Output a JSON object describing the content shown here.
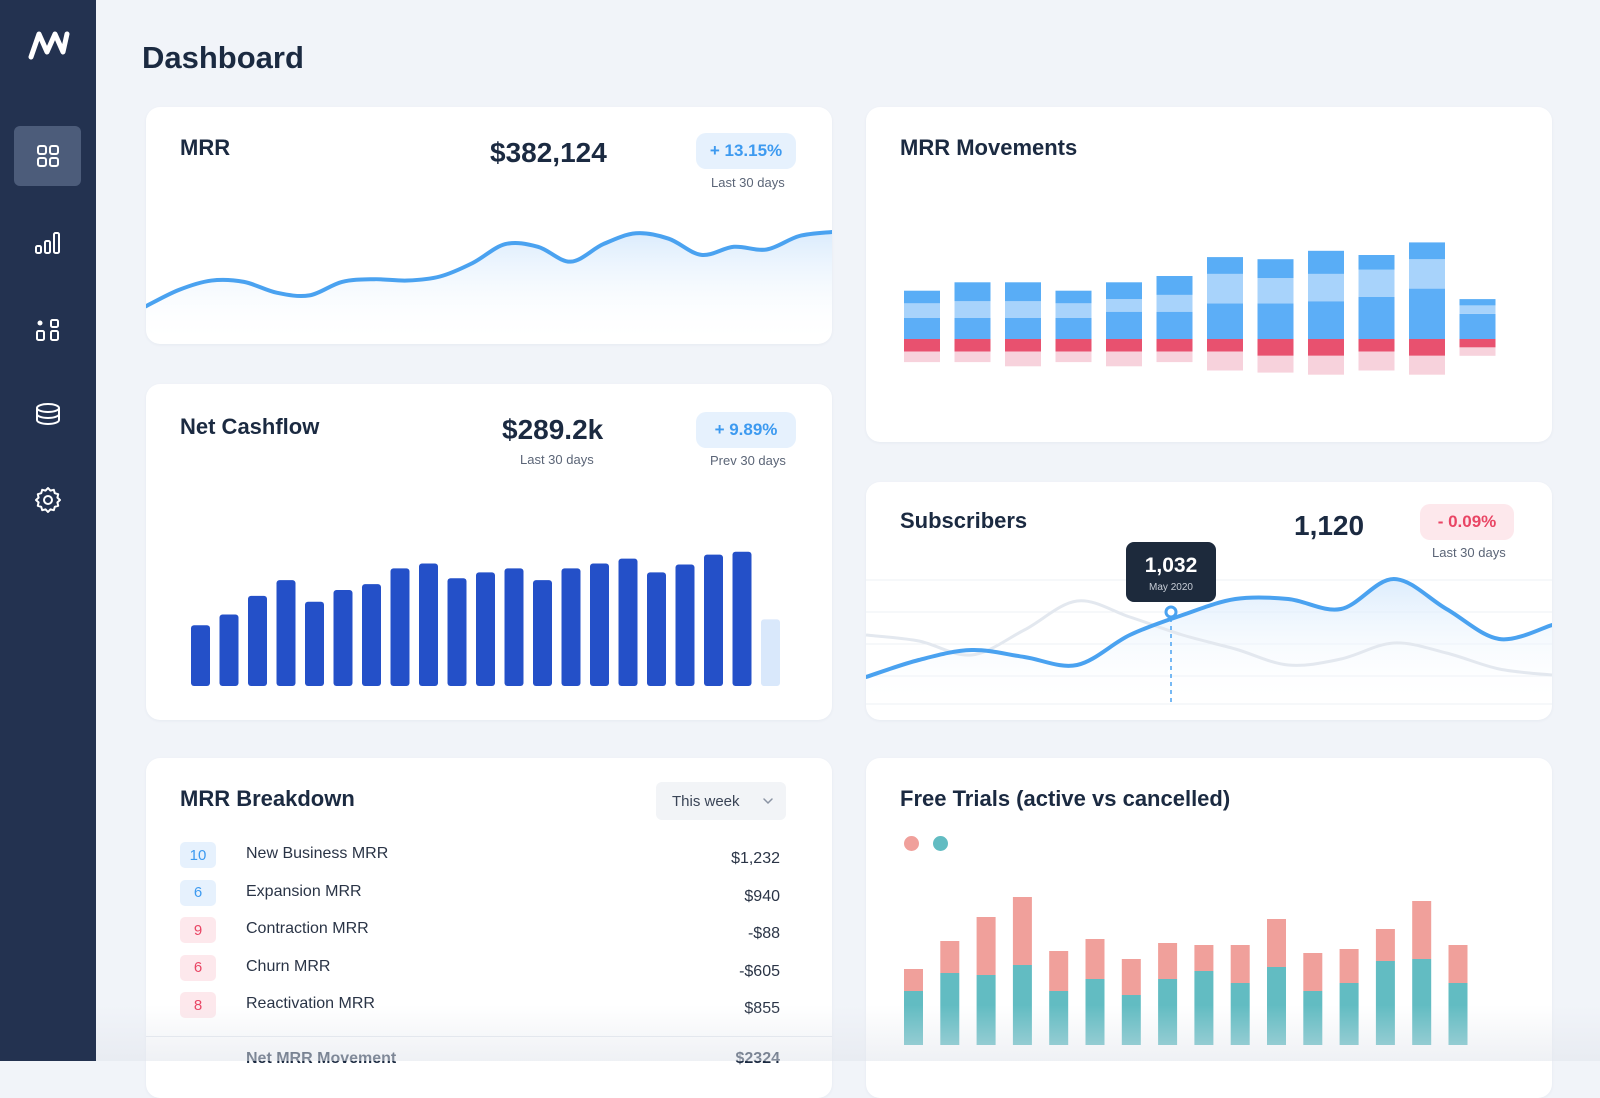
{
  "page": {
    "title": "Dashboard"
  },
  "sidebar": {
    "logo": "brand-logo",
    "items": [
      {
        "icon": "grid-icon",
        "active": true
      },
      {
        "icon": "bar-chart-icon",
        "active": false
      },
      {
        "icon": "shapes-icon",
        "active": false
      },
      {
        "icon": "database-icon",
        "active": false
      },
      {
        "icon": "gear-icon",
        "active": false
      }
    ]
  },
  "mrr": {
    "title": "MRR",
    "value": "$382,124",
    "badge": "+ 13.15%",
    "caption": "Last 30 days",
    "series": [
      28,
      40,
      47,
      46,
      38,
      36,
      46,
      48,
      47,
      50,
      60,
      74,
      72,
      61,
      74,
      82,
      78,
      66,
      72,
      70,
      80,
      83
    ]
  },
  "movements": {
    "title": "MRR Movements",
    "bars": [
      {
        "s1": 12,
        "s2": 14,
        "s3": 20,
        "r1": 12,
        "r2": 10
      },
      {
        "s1": 18,
        "s2": 16,
        "s3": 20,
        "r1": 12,
        "r2": 10
      },
      {
        "s1": 18,
        "s2": 16,
        "s3": 20,
        "r1": 12,
        "r2": 14
      },
      {
        "s1": 12,
        "s2": 14,
        "s3": 20,
        "r1": 12,
        "r2": 10
      },
      {
        "s1": 16,
        "s2": 12,
        "s3": 26,
        "r1": 12,
        "r2": 14
      },
      {
        "s1": 18,
        "s2": 16,
        "s3": 26,
        "r1": 12,
        "r2": 10
      },
      {
        "s1": 16,
        "s2": 28,
        "s3": 34,
        "r1": 12,
        "r2": 18
      },
      {
        "s1": 18,
        "s2": 24,
        "s3": 34,
        "r1": 16,
        "r2": 16
      },
      {
        "s1": 22,
        "s2": 26,
        "s3": 36,
        "r1": 16,
        "r2": 18
      },
      {
        "s1": 14,
        "s2": 26,
        "s3": 40,
        "r1": 12,
        "r2": 18
      },
      {
        "s1": 16,
        "s2": 28,
        "s3": 48,
        "r1": 16,
        "r2": 18
      },
      {
        "s1": 6,
        "s2": 8,
        "s3": 24,
        "r1": 8,
        "r2": 8
      }
    ],
    "colors": {
      "s1": "#59adf6",
      "s2": "#a8d3fb",
      "s3": "#5caef7",
      "r1": "#e8516f",
      "r2": "#f7d2dc"
    }
  },
  "cashflow": {
    "title": "Net Cashflow",
    "value": "$289.2k",
    "value_caption": "Last 30 days",
    "badge": "+ 9.89%",
    "badge_caption": "Prev 30 days",
    "values": [
      62,
      73,
      92,
      108,
      86,
      98,
      104,
      120,
      125,
      110,
      116,
      120,
      108,
      120,
      125,
      130,
      116,
      124,
      134,
      137,
      68
    ],
    "color": "#2450c8",
    "last_color": "#d9e8fb"
  },
  "subscribers": {
    "title": "Subscribers",
    "value": "1,120",
    "badge": "- 0.09%",
    "caption": "Last 30 days",
    "tooltip_value": "1,032",
    "tooltip_label": "May 2020",
    "series_current": [
      28,
      45,
      55,
      48,
      40,
      70,
      90,
      106,
      106,
      96,
      126,
      96,
      66,
      80
    ],
    "series_previous": [
      70,
      64,
      50,
      75,
      104,
      88,
      70,
      56,
      40,
      46,
      62,
      52,
      36,
      30
    ]
  },
  "breakdown": {
    "title": "MRR Breakdown",
    "period": "This week",
    "rows": [
      {
        "count": "10",
        "label": "New Business MRR",
        "amount": "$1,232",
        "tone": "blue"
      },
      {
        "count": "6",
        "label": "Expansion MRR",
        "amount": "$940",
        "tone": "blue"
      },
      {
        "count": "9",
        "label": "Contraction MRR",
        "amount": "-$88",
        "tone": "red"
      },
      {
        "count": "6",
        "label": "Churn MRR",
        "amount": "-$605",
        "tone": "red"
      },
      {
        "count": "8",
        "label": "Reactivation MRR",
        "amount": "$855",
        "tone": "red"
      }
    ],
    "total_label": "Net MRR Movement",
    "total_amount": "$2324"
  },
  "trials": {
    "title": "Free Trials (active vs cancelled)",
    "colors": {
      "active": "#62bcc2",
      "cancelled": "#f0a09b"
    },
    "active": [
      54,
      72,
      70,
      80,
      54,
      66,
      50,
      66,
      74,
      62,
      78,
      54,
      62,
      84,
      86,
      62
    ],
    "cancelled": [
      22,
      32,
      58,
      68,
      40,
      40,
      36,
      36,
      26,
      38,
      48,
      38,
      34,
      32,
      58,
      38
    ]
  }
}
